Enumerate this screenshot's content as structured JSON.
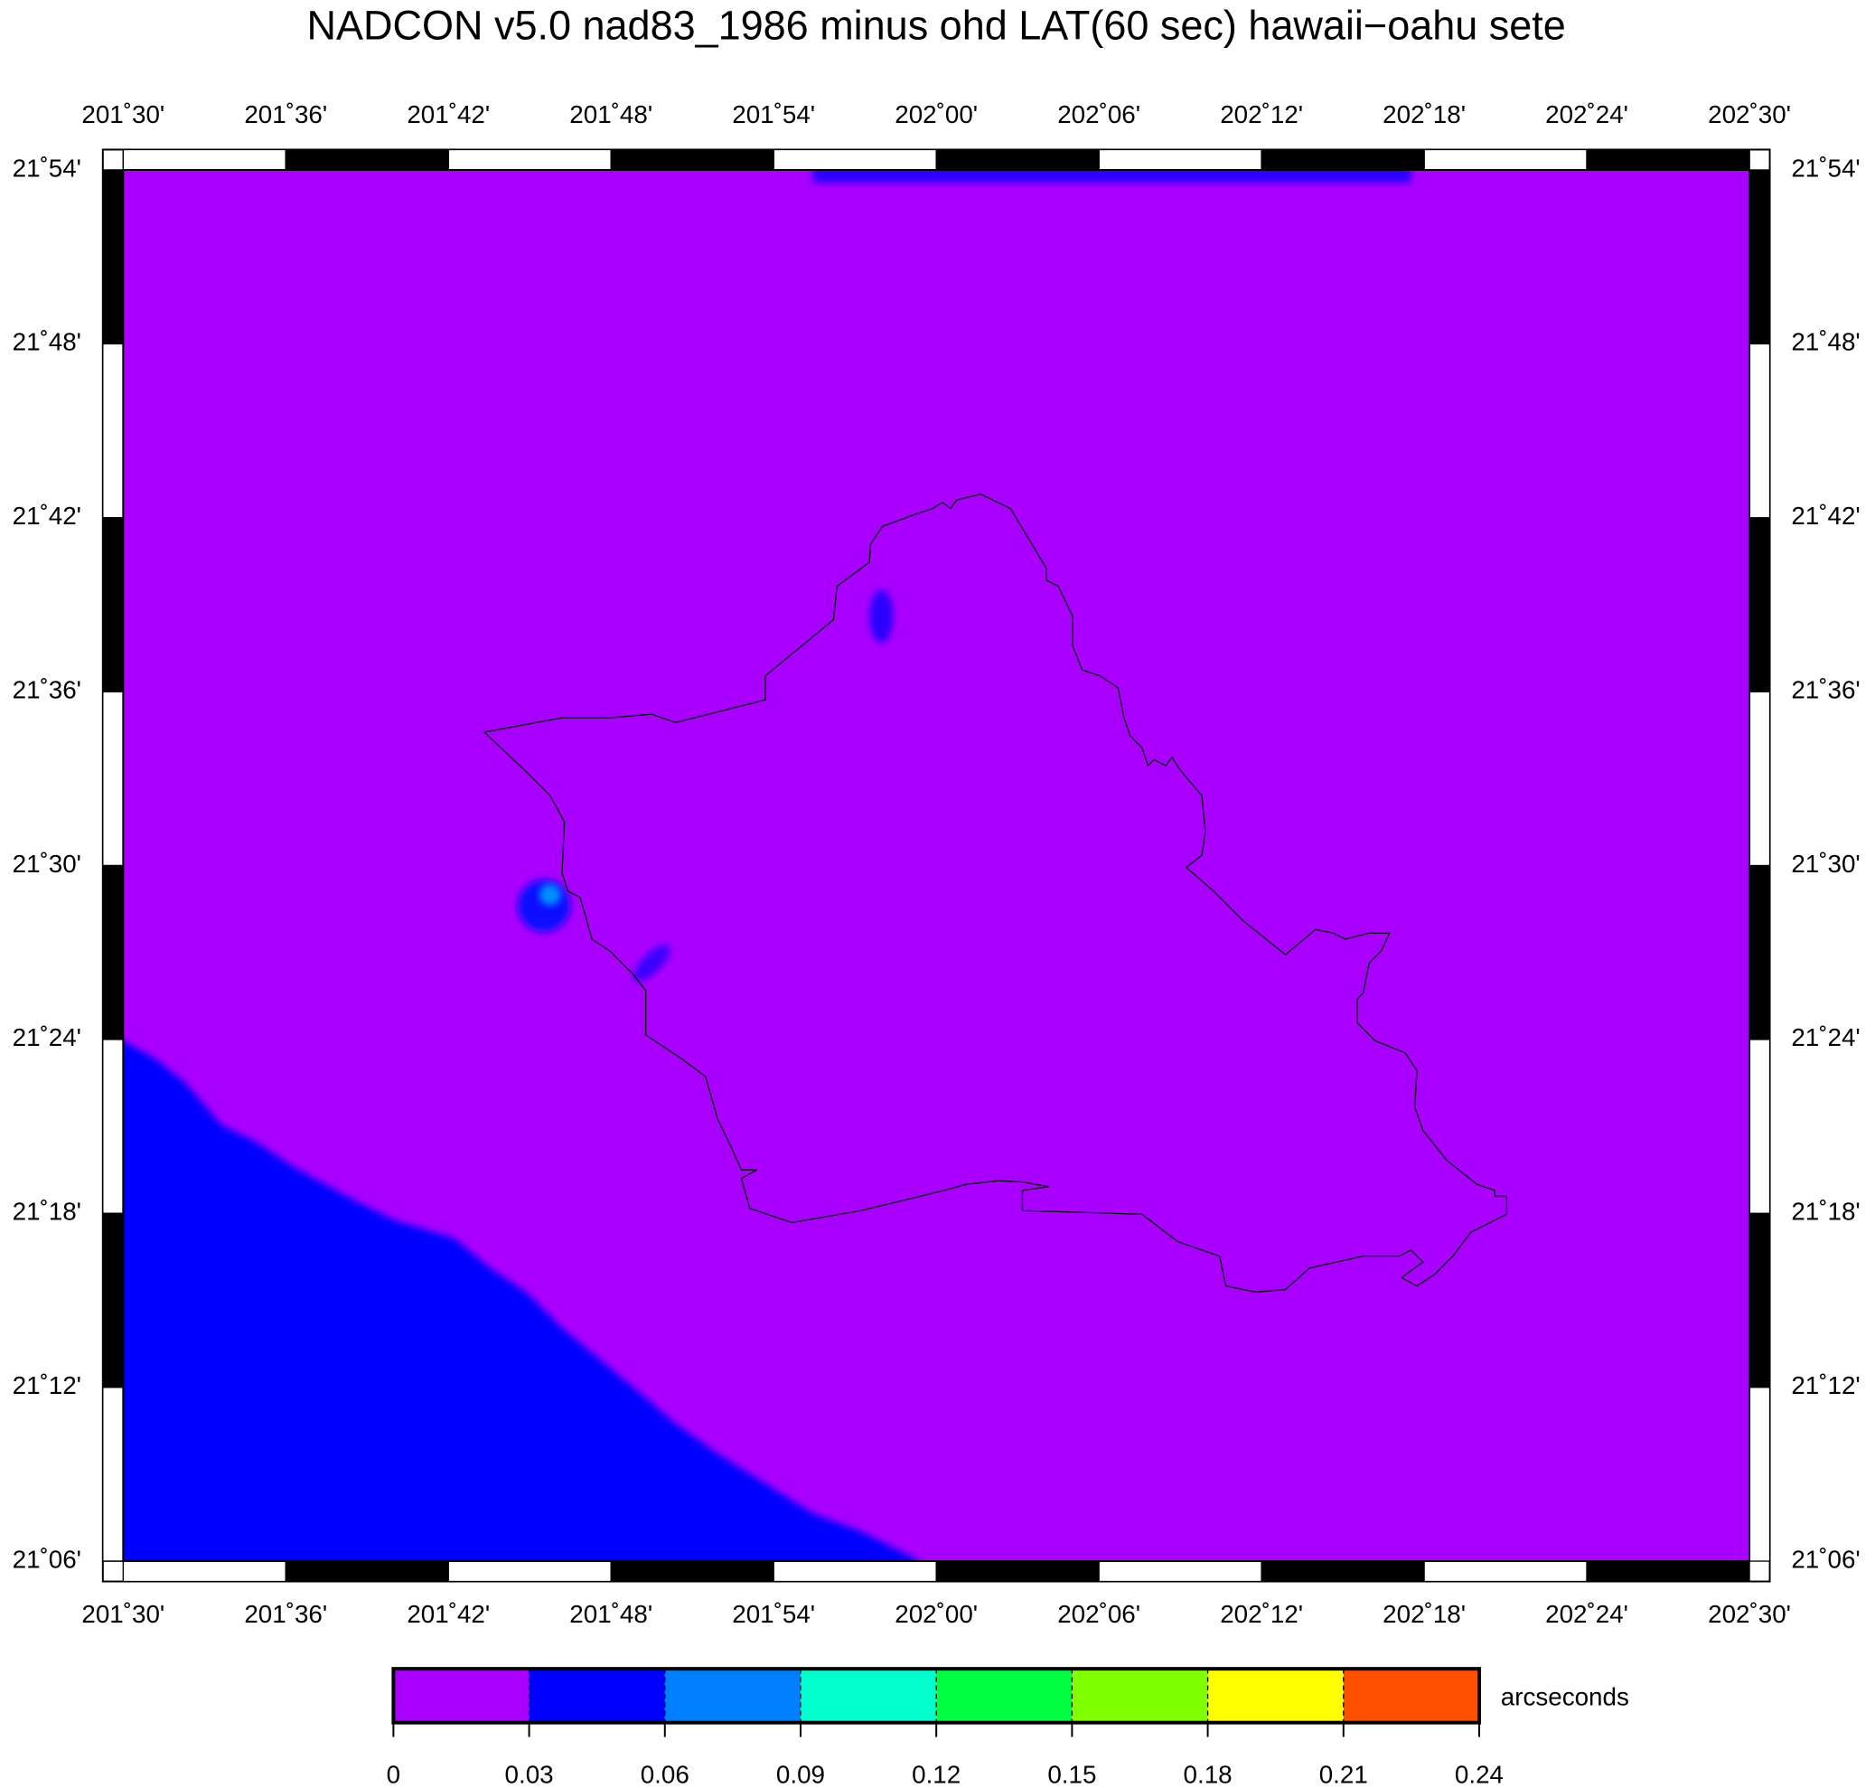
{
  "chart_data": {
    "type": "map",
    "title": "NADCON v5.0 nad83_1986 minus ohd LAT(60 sec) hawaii−oahu sete",
    "xlim": [
      201.5,
      202.5
    ],
    "xticks": [
      {
        "value": 201.5,
        "label": "201˚30'"
      },
      {
        "value": 201.6,
        "label": "201˚36'"
      },
      {
        "value": 201.7,
        "label": "201˚42'"
      },
      {
        "value": 201.8,
        "label": "201˚48'"
      },
      {
        "value": 201.9,
        "label": "201˚54'"
      },
      {
        "value": 202.0,
        "label": "202˚00'"
      },
      {
        "value": 202.1,
        "label": "202˚06'"
      },
      {
        "value": 202.2,
        "label": "202˚12'"
      },
      {
        "value": 202.3,
        "label": "202˚18'"
      },
      {
        "value": 202.4,
        "label": "202˚24'"
      },
      {
        "value": 202.5,
        "label": "202˚30'"
      }
    ],
    "ylim": [
      21.1,
      21.9
    ],
    "yticks": [
      {
        "value": 21.1,
        "label": "21˚06'"
      },
      {
        "value": 21.2,
        "label": "21˚12'"
      },
      {
        "value": 21.3,
        "label": "21˚18'"
      },
      {
        "value": 21.4,
        "label": "21˚24'"
      },
      {
        "value": 21.5,
        "label": "21˚30'"
      },
      {
        "value": 21.6,
        "label": "21˚36'"
      },
      {
        "value": 21.7,
        "label": "21˚42'"
      },
      {
        "value": 21.8,
        "label": "21˚48'"
      },
      {
        "value": 21.9,
        "label": "21˚54'"
      }
    ],
    "colorbar": {
      "label": "arcseconds",
      "ticks": [
        0,
        0.03,
        0.06,
        0.09,
        0.12,
        0.15,
        0.18,
        0.21,
        0.24
      ],
      "colors": [
        "#aa00ff",
        "#0000ff",
        "#0080ff",
        "#00ffcc",
        "#00ff40",
        "#80ff00",
        "#ffff00",
        "#ff5000"
      ]
    }
  }
}
